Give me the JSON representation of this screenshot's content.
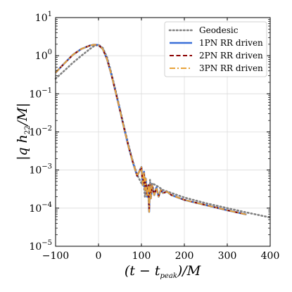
{
  "chart_data": {
    "type": "line",
    "xlabel": "(t − t_peak)/M",
    "ylabel": "|q h22/M|",
    "xlim": [
      -100,
      400
    ],
    "ylim": [
      1e-05,
      10
    ],
    "yscale": "log",
    "grid": true,
    "legend_position": "top-right",
    "x_ticks": [
      -100,
      0,
      100,
      200,
      300,
      400
    ],
    "y_ticks": [
      {
        "value": 1e-05,
        "base": "10",
        "exp": "−5"
      },
      {
        "value": 0.0001,
        "base": "10",
        "exp": "−4"
      },
      {
        "value": 0.001,
        "base": "10",
        "exp": "−3"
      },
      {
        "value": 0.01,
        "base": "10",
        "exp": "−2"
      },
      {
        "value": 0.1,
        "base": "10",
        "exp": "−1"
      },
      {
        "value": 1,
        "base": "10",
        "exp": "0"
      },
      {
        "value": 10,
        "base": "10",
        "exp": "1"
      }
    ],
    "series": [
      {
        "name": "Geodesic",
        "color": "#808080",
        "style": "dotted",
        "width": 2.6,
        "x": [
          -100,
          -80,
          -60,
          -40,
          -20,
          -10,
          0,
          10,
          20,
          30,
          40,
          50,
          60,
          70,
          80,
          90,
          100,
          105,
          108,
          110,
          115,
          118,
          120,
          122,
          125,
          130,
          140,
          150,
          200,
          250,
          300,
          350,
          400
        ],
        "y": [
          0.25,
          0.4,
          0.65,
          1.0,
          1.5,
          1.8,
          1.95,
          1.6,
          0.9,
          0.35,
          0.12,
          0.04,
          0.013,
          0.0045,
          0.0017,
          0.00075,
          0.00045,
          0.00055,
          0.0002,
          0.00045,
          0.0003,
          0.0001,
          0.00055,
          0.00032,
          0.00045,
          0.00042,
          0.00036,
          0.0003,
          0.00019,
          0.000135,
          0.0001,
          7.5e-05,
          5.7e-05
        ]
      },
      {
        "name": "1PN RR driven",
        "color": "#3a6fd8",
        "style": "solid",
        "width": 2.6,
        "x": [
          -100,
          -80,
          -60,
          -40,
          -20,
          -10,
          0,
          10,
          20,
          30,
          40,
          50,
          60,
          70,
          80,
          90,
          100,
          103,
          106,
          108,
          110,
          113,
          116,
          118,
          120,
          122,
          125,
          130,
          135,
          140,
          145,
          150,
          160,
          170,
          180,
          200,
          250,
          300,
          345
        ],
        "y": [
          0.36,
          0.62,
          1.05,
          1.5,
          1.85,
          1.95,
          1.9,
          1.5,
          0.8,
          0.32,
          0.11,
          0.037,
          0.012,
          0.0041,
          0.0016,
          0.0007,
          0.0012,
          0.0004,
          0.0009,
          0.0003,
          0.0006,
          0.0002,
          0.0004,
          8e-05,
          0.00045,
          0.00018,
          0.0004,
          0.00022,
          0.00035,
          0.0002,
          0.0003,
          0.00025,
          0.00027,
          0.00022,
          0.0002,
          0.000165,
          0.00012,
          8.8e-05,
          6.8e-05
        ]
      },
      {
        "name": "2PN RR driven",
        "color": "#8b0000",
        "style": "dashed",
        "width": 2.0,
        "x": [
          -100,
          -80,
          -60,
          -40,
          -20,
          -10,
          0,
          10,
          20,
          30,
          40,
          50,
          60,
          70,
          80,
          90,
          100,
          103,
          106,
          108,
          110,
          113,
          116,
          118,
          120,
          122,
          125,
          130,
          135,
          140,
          145,
          150,
          160,
          170,
          180,
          200,
          250,
          300,
          345
        ],
        "y": [
          0.36,
          0.62,
          1.05,
          1.5,
          1.85,
          1.95,
          1.9,
          1.5,
          0.8,
          0.32,
          0.11,
          0.037,
          0.012,
          0.0041,
          0.0016,
          0.0007,
          0.0012,
          0.0004,
          0.0009,
          0.0003,
          0.0006,
          0.0002,
          0.0004,
          8e-05,
          0.00045,
          0.00018,
          0.0004,
          0.00022,
          0.00035,
          0.0002,
          0.0003,
          0.00025,
          0.00027,
          0.00022,
          0.0002,
          0.000165,
          0.00012,
          8.8e-05,
          6.8e-05
        ]
      },
      {
        "name": "3PN RR driven",
        "color": "#e8a33a",
        "style": "dashdot",
        "width": 2.0,
        "x": [
          -100,
          -80,
          -60,
          -40,
          -20,
          -10,
          0,
          10,
          20,
          30,
          40,
          50,
          60,
          70,
          80,
          90,
          100,
          103,
          106,
          108,
          110,
          113,
          116,
          118,
          120,
          122,
          125,
          130,
          135,
          140,
          145,
          150,
          160,
          170,
          180,
          200,
          250,
          300,
          345
        ],
        "y": [
          0.36,
          0.62,
          1.05,
          1.5,
          1.85,
          1.95,
          1.9,
          1.5,
          0.8,
          0.32,
          0.11,
          0.037,
          0.012,
          0.0041,
          0.0016,
          0.0007,
          0.0012,
          0.0004,
          0.0009,
          0.0003,
          0.0006,
          0.0002,
          0.0004,
          8e-05,
          0.00045,
          0.00018,
          0.0004,
          0.00022,
          0.00035,
          0.0002,
          0.0003,
          0.00025,
          0.00027,
          0.00022,
          0.0002,
          0.000165,
          0.00012,
          8.8e-05,
          6.8e-05
        ]
      }
    ]
  }
}
